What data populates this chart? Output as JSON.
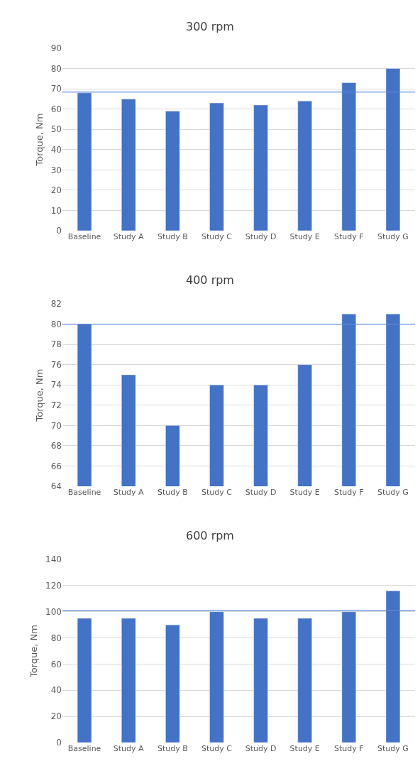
{
  "chart_data": [
    {
      "type": "bar",
      "title": "300 rpm",
      "ylabel": "Torque, Nm",
      "categories": [
        "Baseline",
        "Study A",
        "Study B",
        "Study C",
        "Study D",
        "Study E",
        "Study F",
        "Study G"
      ],
      "values": [
        68,
        65,
        59,
        63,
        62,
        64,
        73,
        80
      ],
      "color": "#4472c4",
      "ylim": [
        0,
        90
      ],
      "yticks": [
        0,
        10,
        20,
        30,
        40,
        50,
        60,
        70,
        80,
        90
      ],
      "grid": "y",
      "ref_lines": [
        {
          "axis": "y",
          "value": 68.4,
          "color": "#5b8bd8"
        }
      ]
    },
    {
      "type": "bar",
      "title": "400 rpm",
      "ylabel": "Torque, Nm",
      "categories": [
        "Baseline",
        "Study A",
        "Study B",
        "Study C",
        "Study D",
        "Study E",
        "Study F",
        "Study G"
      ],
      "values": [
        80,
        75,
        70,
        74,
        74,
        76,
        81,
        81
      ],
      "color": "#4472c4",
      "ylim": [
        64,
        82
      ],
      "yticks": [
        64,
        66,
        68,
        70,
        72,
        74,
        76,
        78,
        80,
        82
      ],
      "grid": "y",
      "ref_lines": [
        {
          "axis": "y",
          "value": 80,
          "color": "#5b8bd8"
        }
      ]
    },
    {
      "type": "bar",
      "title": "600 rpm",
      "ylabel": "Torque, Nm",
      "categories": [
        "Baseline",
        "Study A",
        "Study B",
        "Study C",
        "Study D",
        "Study E",
        "Study F",
        "Study G"
      ],
      "values": [
        95,
        95,
        90,
        100,
        95,
        95,
        100,
        116
      ],
      "color": "#4472c4",
      "ylim": [
        0,
        140
      ],
      "yticks": [
        0,
        20,
        40,
        60,
        80,
        100,
        120,
        140
      ],
      "grid": "y",
      "ref_lines": [
        {
          "axis": "y",
          "value": 101,
          "color": "#5b8bd8"
        }
      ]
    }
  ]
}
